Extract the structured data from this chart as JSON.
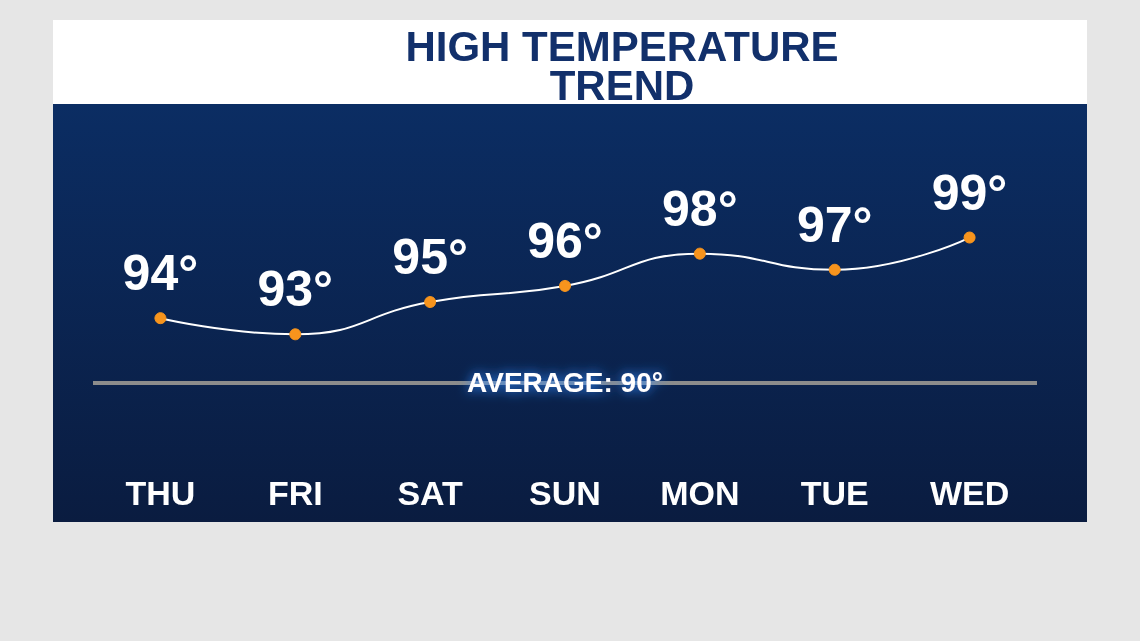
{
  "chart_data": {
    "type": "line",
    "title": "HIGH TEMPERATURE\nTREND",
    "categories": [
      "THU",
      "FRI",
      "SAT",
      "SUN",
      "MON",
      "TUE",
      "WED"
    ],
    "values": [
      94,
      93,
      95,
      96,
      98,
      97,
      99
    ],
    "value_labels": [
      "94°",
      "93°",
      "95°",
      "96°",
      "98°",
      "97°",
      "99°"
    ],
    "color": "#ffffff",
    "marker": "circle",
    "ref_lines": [
      {
        "axis": "y",
        "value": 90,
        "label": "AVERAGE: 90°",
        "color": "#8c8c8c"
      }
    ]
  }
}
